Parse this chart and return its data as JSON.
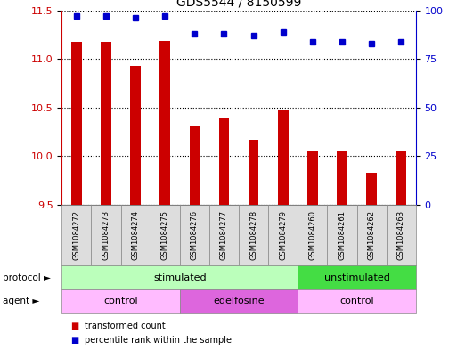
{
  "title": "GDS5544 / 8150599",
  "samples": [
    "GSM1084272",
    "GSM1084273",
    "GSM1084274",
    "GSM1084275",
    "GSM1084276",
    "GSM1084277",
    "GSM1084278",
    "GSM1084279",
    "GSM1084260",
    "GSM1084261",
    "GSM1084262",
    "GSM1084263"
  ],
  "transformed_counts": [
    11.18,
    11.18,
    10.93,
    11.19,
    10.31,
    10.39,
    10.17,
    10.47,
    10.05,
    10.05,
    9.83,
    10.05
  ],
  "percentile_ranks": [
    97,
    97,
    96,
    97,
    88,
    88,
    87,
    89,
    84,
    84,
    83,
    84
  ],
  "ylim_left": [
    9.5,
    11.5
  ],
  "ylim_right": [
    0,
    100
  ],
  "yticks_left": [
    9.5,
    10.0,
    10.5,
    11.0,
    11.5
  ],
  "yticks_right": [
    0,
    25,
    50,
    75,
    100
  ],
  "bar_color": "#cc0000",
  "dot_color": "#0000cc",
  "protocol_groups": [
    {
      "label": "stimulated",
      "start": 0,
      "end": 8,
      "color": "#bbffbb"
    },
    {
      "label": "unstimulated",
      "start": 8,
      "end": 12,
      "color": "#44dd44"
    }
  ],
  "agent_groups": [
    {
      "label": "control",
      "start": 0,
      "end": 4,
      "color": "#ffbbff"
    },
    {
      "label": "edelfosine",
      "start": 4,
      "end": 8,
      "color": "#dd66dd"
    },
    {
      "label": "control",
      "start": 8,
      "end": 12,
      "color": "#ffbbff"
    }
  ],
  "background_color": "#ffffff",
  "title_fontsize": 10,
  "tick_fontsize": 8,
  "label_fontsize": 7,
  "sample_fontsize": 6,
  "row_fontsize": 8
}
